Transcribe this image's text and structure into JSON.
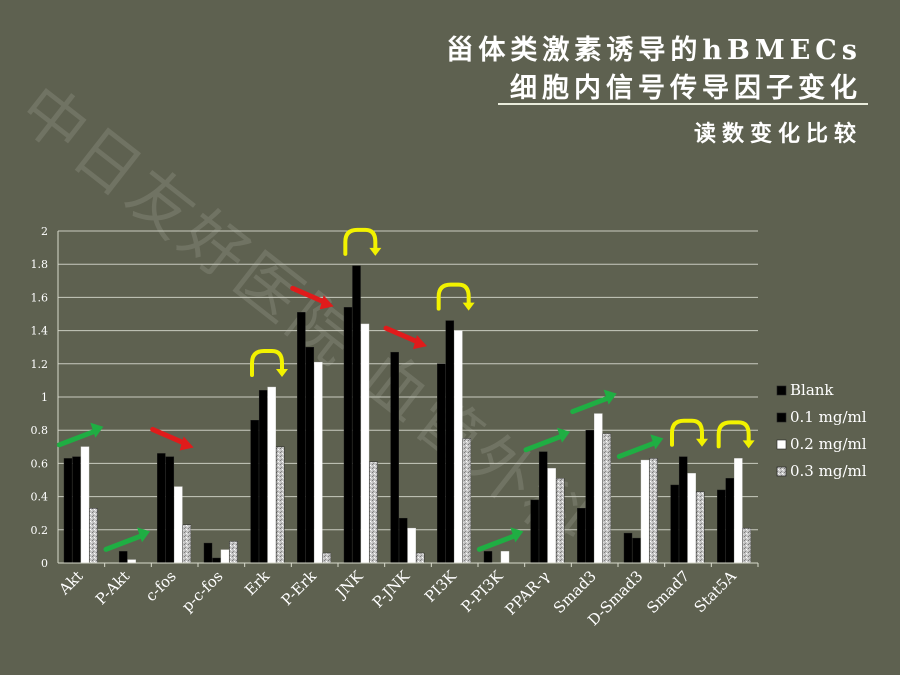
{
  "title_line1": "甾体类激素诱导的hBMECs",
  "title_line2": "细胞内信号传导因子变化",
  "subtitle": "读数变化比较",
  "watermark": "中日友好医院 血管外科",
  "colors": {
    "background": "#5e6150",
    "grid": "#c9cbbf",
    "series": [
      "#000000",
      "#000000",
      "#ffffff",
      "#b9b9b9"
    ],
    "arrow_up": "#1fae43",
    "arrow_down": "#e01b1b",
    "arrow_loop": "#f2f200"
  },
  "chart_data": {
    "type": "bar",
    "categories": [
      "Akt",
      "P-Akt",
      "c-fos",
      "p-c-fos",
      "Erk",
      "P-Erk",
      "JNK",
      "P-JNK",
      "PI3K",
      "P-PI3K",
      "PPAR-γ",
      "Smad3",
      "D-Smad3",
      "Smad7",
      "Stat5A"
    ],
    "series": [
      {
        "name": "Blank",
        "values": [
          0.63,
          0.0,
          0.66,
          0.12,
          0.86,
          1.51,
          1.54,
          1.27,
          1.2,
          0.07,
          0.38,
          0.33,
          0.18,
          0.47,
          0.44
        ]
      },
      {
        "name": "0.1 mg/ml",
        "values": [
          0.64,
          0.07,
          0.64,
          0.03,
          1.04,
          1.3,
          1.79,
          0.27,
          1.46,
          0.0,
          0.67,
          0.8,
          0.15,
          0.64,
          0.51
        ]
      },
      {
        "name": "0.2 mg/ml",
        "values": [
          0.7,
          0.02,
          0.46,
          0.08,
          1.06,
          1.21,
          1.44,
          0.21,
          1.4,
          0.07,
          0.57,
          0.9,
          0.62,
          0.54,
          0.63
        ]
      },
      {
        "name": "0.3 mg/ml",
        "values": [
          0.33,
          0.0,
          0.23,
          0.13,
          0.7,
          0.06,
          0.61,
          0.06,
          0.75,
          0.0,
          0.51,
          0.78,
          0.63,
          0.43,
          0.21
        ]
      }
    ],
    "yticks": [
      "0",
      "0.2",
      "0.4",
      "0.6",
      "0.8",
      "1",
      "1.2",
      "1.4",
      "1.6",
      "1.8",
      "2"
    ],
    "ylim": [
      0,
      2
    ],
    "grid": true,
    "legend_position": "right",
    "trend_arrows": [
      {
        "category": "Akt",
        "kind": "up"
      },
      {
        "category": "P-Akt",
        "kind": "up"
      },
      {
        "category": "c-fos",
        "kind": "down"
      },
      {
        "category": "Erk",
        "kind": "loop"
      },
      {
        "category": "P-Erk",
        "kind": "down"
      },
      {
        "category": "JNK",
        "kind": "loop"
      },
      {
        "category": "P-JNK",
        "kind": "down"
      },
      {
        "category": "PI3K",
        "kind": "loop"
      },
      {
        "category": "P-PI3K",
        "kind": "up"
      },
      {
        "category": "PPAR-γ",
        "kind": "up"
      },
      {
        "category": "Smad3",
        "kind": "up"
      },
      {
        "category": "D-Smad3",
        "kind": "up"
      },
      {
        "category": "Smad7",
        "kind": "loop"
      },
      {
        "category": "Stat5A",
        "kind": "loop"
      }
    ]
  }
}
